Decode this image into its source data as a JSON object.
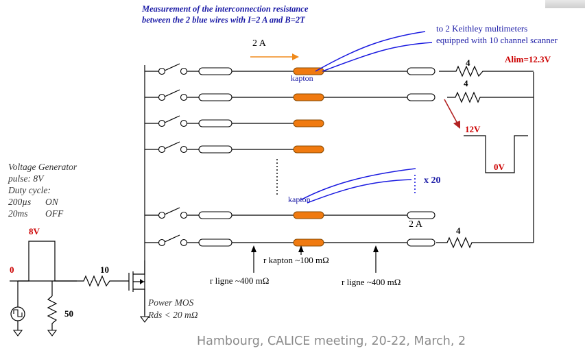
{
  "title": {
    "line1": "Measurement of the interconnection resistance",
    "line2": "between the 2 blue wires with I=2 A and B=2T"
  },
  "multimeter": {
    "line1": "to 2 Keithley multimeters",
    "line2": "equipped with 10 channel scanner"
  },
  "labels": {
    "current_top": "2 A",
    "current_bottom": "2 A",
    "kapton_top": "kapton",
    "kapton_mid": "kapton",
    "x20": "x 20",
    "alim": "Alim=12.3V",
    "pulse_high": "12V",
    "pulse_low": "0V",
    "r1": "4",
    "r2": "4",
    "r3": "4",
    "r_gate": "10",
    "r_gnd": "50",
    "r_kapton": "r kapton ~100 mΩ",
    "r_ligne_left": "r ligne ~400 mΩ",
    "r_ligne_right": "r ligne ~400 mΩ",
    "gen_8v": "8V",
    "gen_0": "0",
    "mos_name": "Power MOS",
    "mos_rds": "Rds < 20 mΩ"
  },
  "generator": {
    "line1": "Voltage Generator",
    "line2": "pulse: 8V",
    "line3": "Duty cycle:",
    "line4a": "200µs",
    "line4b": "ON",
    "line5a": "20ms",
    "line5b": "OFF"
  },
  "footer": "Hambourg,  CALICE meeting, 20-22, March, 2",
  "colors": {
    "kapton_fill": "#f07a10",
    "blue_wire": "#1a1ae0",
    "red_text": "#cc0000",
    "arrow_orange": "#f08a1a",
    "arrow_red": "#b22222"
  }
}
